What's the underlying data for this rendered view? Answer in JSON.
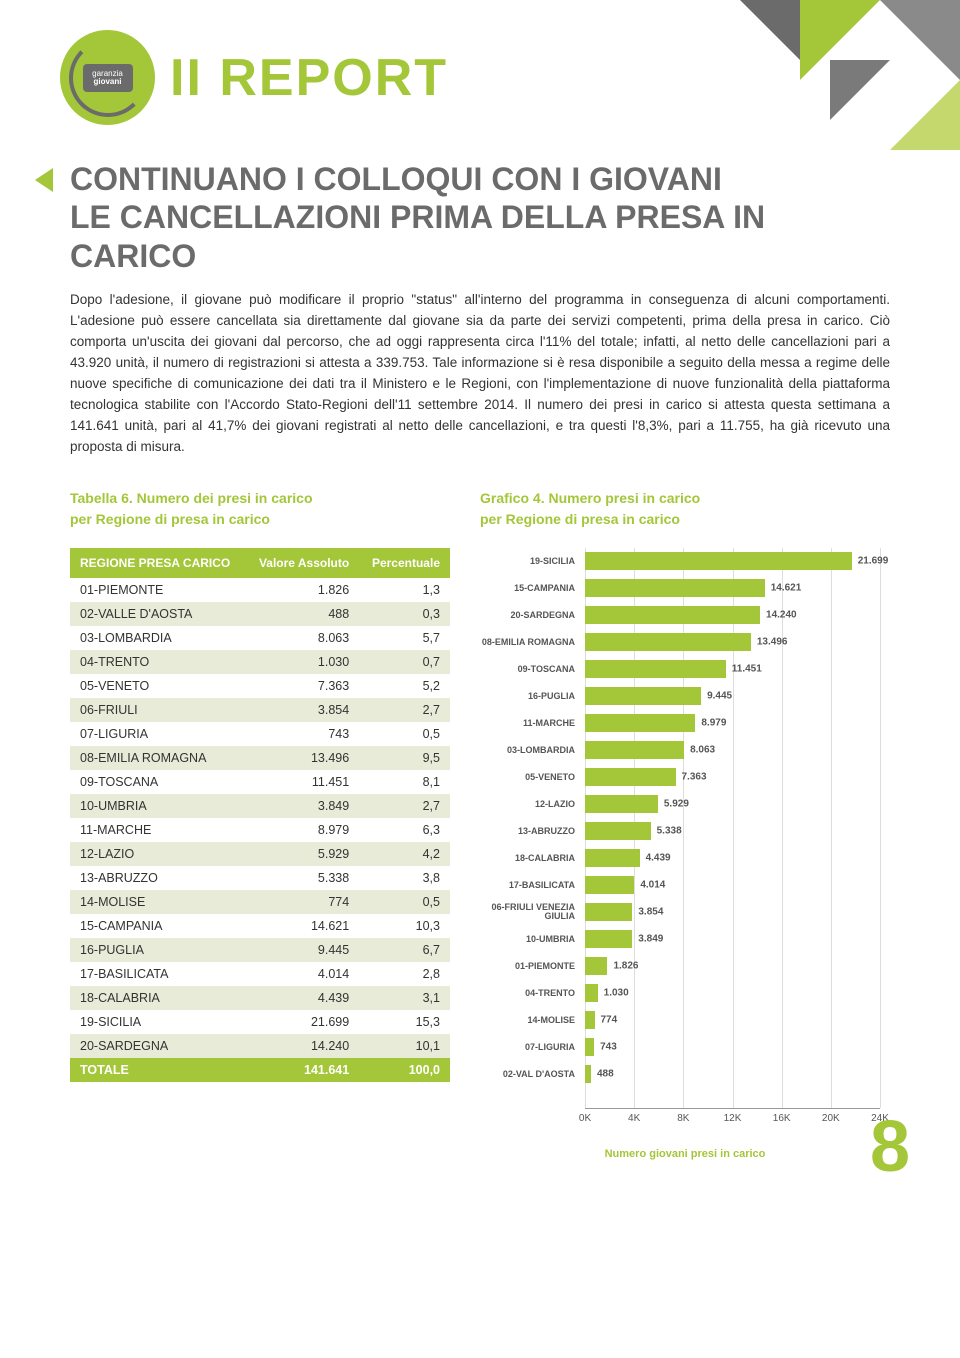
{
  "header": {
    "logo_top": "garanzia",
    "logo_bottom": "giovani",
    "title": "II REPORT"
  },
  "main_title_line1": "CONTINUANO I COLLOQUI CON I GIOVANI",
  "main_title_line2": "LE CANCELLAZIONI PRIMA DELLA PRESA IN CARICO",
  "body_text": "Dopo l'adesione, il giovane può modificare il proprio \"status\" all'interno del programma in conseguenza di alcuni comportamenti. L'adesione può essere cancellata sia direttamente dal giovane sia da parte dei servizi competenti, prima della presa in carico. Ciò comporta un'uscita dei giovani dal percorso, che ad oggi rappresenta circa l'11% del totale; infatti, al netto delle cancellazioni pari a 43.920 unità, il numero di registrazioni si attesta a 339.753. Tale informazione si è resa disponibile a seguito della messa a regime delle nuove specifiche di comunicazione dei dati tra il Ministero e le Regioni, con l'implementazione di nuove funzionalità della piattaforma tecnologica stabilite con l'Accordo Stato-Regioni dell'11 settembre 2014. Il numero dei presi in carico si attesta questa settimana a 141.641 unità, pari al 41,7% dei giovani registrati al netto delle cancellazioni, e tra questi l'8,3%, pari a 11.755, ha già ricevuto una proposta di misura.",
  "table": {
    "title_line1": "Tabella 6. Numero dei presi in carico",
    "title_line2": "per Regione di presa in carico",
    "col1": "REGIONE PRESA CARICO",
    "col2": "Valore Assoluto",
    "col3": "Percentuale",
    "rows": [
      {
        "r": "01-PIEMONTE",
        "v": "1.826",
        "p": "1,3"
      },
      {
        "r": "02-VALLE D'AOSTA",
        "v": "488",
        "p": "0,3"
      },
      {
        "r": "03-LOMBARDIA",
        "v": "8.063",
        "p": "5,7"
      },
      {
        "r": "04-TRENTO",
        "v": "1.030",
        "p": "0,7"
      },
      {
        "r": "05-VENETO",
        "v": "7.363",
        "p": "5,2"
      },
      {
        "r": "06-FRIULI",
        "v": "3.854",
        "p": "2,7"
      },
      {
        "r": "07-LIGURIA",
        "v": "743",
        "p": "0,5"
      },
      {
        "r": "08-EMILIA ROMAGNA",
        "v": "13.496",
        "p": "9,5"
      },
      {
        "r": "09-TOSCANA",
        "v": "11.451",
        "p": "8,1"
      },
      {
        "r": "10-UMBRIA",
        "v": "3.849",
        "p": "2,7"
      },
      {
        "r": "11-MARCHE",
        "v": "8.979",
        "p": "6,3"
      },
      {
        "r": "12-LAZIO",
        "v": "5.929",
        "p": "4,2"
      },
      {
        "r": "13-ABRUZZO",
        "v": "5.338",
        "p": "3,8"
      },
      {
        "r": "14-MOLISE",
        "v": "774",
        "p": "0,5"
      },
      {
        "r": "15-CAMPANIA",
        "v": "14.621",
        "p": "10,3"
      },
      {
        "r": "16-PUGLIA",
        "v": "9.445",
        "p": "6,7"
      },
      {
        "r": "17-BASILICATA",
        "v": "4.014",
        "p": "2,8"
      },
      {
        "r": "18-CALABRIA",
        "v": "4.439",
        "p": "3,1"
      },
      {
        "r": "19-SICILIA",
        "v": "21.699",
        "p": "15,3"
      },
      {
        "r": "20-SARDEGNA",
        "v": "14.240",
        "p": "10,1"
      }
    ],
    "total": {
      "r": "TOTALE",
      "v": "141.641",
      "p": "100,0"
    }
  },
  "chart": {
    "title_line1": "Grafico 4. Numero presi in carico",
    "title_line2": "per Regione di presa in carico",
    "x_title": "Numero giovani presi in carico",
    "x_max": 24000,
    "x_ticks": [
      "0K",
      "4K",
      "8K",
      "12K",
      "16K",
      "20K",
      "24K"
    ],
    "bar_color": "#a4c639",
    "bars": [
      {
        "l": "19-SICILIA",
        "v": 21699,
        "d": "21.699"
      },
      {
        "l": "15-CAMPANIA",
        "v": 14621,
        "d": "14.621"
      },
      {
        "l": "20-SARDEGNA",
        "v": 14240,
        "d": "14.240"
      },
      {
        "l": "08-EMILIA ROMAGNA",
        "v": 13496,
        "d": "13.496"
      },
      {
        "l": "09-TOSCANA",
        "v": 11451,
        "d": "11.451"
      },
      {
        "l": "16-PUGLIA",
        "v": 9445,
        "d": "9.445"
      },
      {
        "l": "11-MARCHE",
        "v": 8979,
        "d": "8.979"
      },
      {
        "l": "03-LOMBARDIA",
        "v": 8063,
        "d": "8.063"
      },
      {
        "l": "05-VENETO",
        "v": 7363,
        "d": "7.363"
      },
      {
        "l": "12-LAZIO",
        "v": 5929,
        "d": "5.929"
      },
      {
        "l": "13-ABRUZZO",
        "v": 5338,
        "d": "5.338"
      },
      {
        "l": "18-CALABRIA",
        "v": 4439,
        "d": "4.439"
      },
      {
        "l": "17-BASILICATA",
        "v": 4014,
        "d": "4.014"
      },
      {
        "l": "06-FRIULI VENEZIA GIULIA",
        "v": 3854,
        "d": "3.854"
      },
      {
        "l": "10-UMBRIA",
        "v": 3849,
        "d": "3.849"
      },
      {
        "l": "01-PIEMONTE",
        "v": 1826,
        "d": "1.826"
      },
      {
        "l": "04-TRENTO",
        "v": 1030,
        "d": "1.030"
      },
      {
        "l": "14-MOLISE",
        "v": 774,
        "d": "774"
      },
      {
        "l": "07-LIGURIA",
        "v": 743,
        "d": "743"
      },
      {
        "l": "02-VAL D'AOSTA",
        "v": 488,
        "d": "488"
      }
    ]
  },
  "page_number": "8"
}
